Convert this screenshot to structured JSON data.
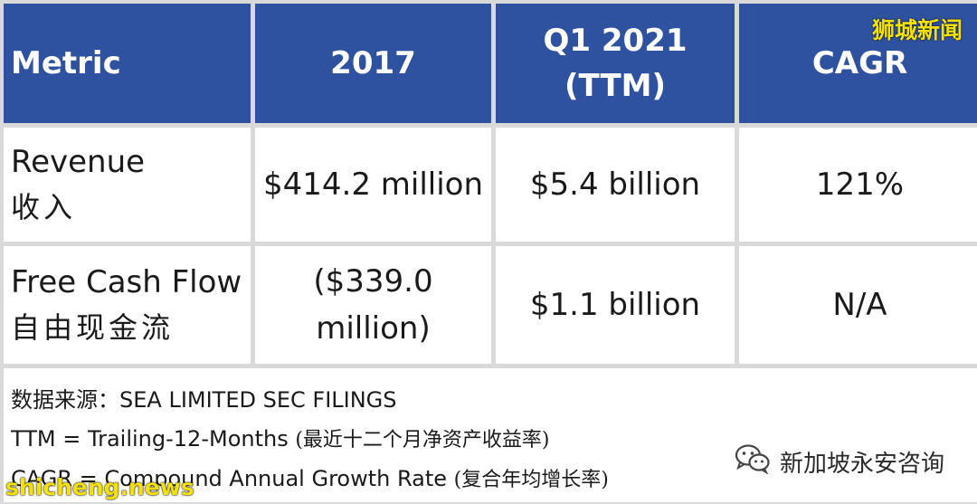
{
  "header": {
    "metric": "Metric",
    "year_2017": "2017",
    "q1_2021_line1": "Q1 2021",
    "q1_2021_line2": "(TTM)",
    "cagr": "CAGR"
  },
  "rows": [
    {
      "label_en": "Revenue",
      "label_cn": "收入",
      "val_2017": "$414.2 million",
      "val_q1_2021": "$5.4 billion",
      "cagr": "121%"
    },
    {
      "label_en": "Free Cash Flow",
      "label_cn": "自由现金流",
      "val_2017_line1": "($339.0",
      "val_2017_line2": "million)",
      "val_q1_2021": "$1.1 billion",
      "cagr": "N/A"
    }
  ],
  "notes": {
    "source": "数据来源：SEA LIMITED SEC FILINGS",
    "ttm_en": "TTM = Trailing-12-Months ",
    "ttm_cn": "(最近十二个月净资产收益率)",
    "cagr_en": "CAGR = Compound Annual Growth Rate ",
    "cagr_cn": "(复合年均增长率)"
  },
  "watermarks": {
    "top_right": "狮城新闻",
    "wechat": "新加坡永安咨询",
    "bottom_left": "shicheng.news"
  },
  "colors": {
    "header_bg": "#2f52a0",
    "grid_bg": "#d9d9d9",
    "watermark_yellow": "#f5e100"
  }
}
